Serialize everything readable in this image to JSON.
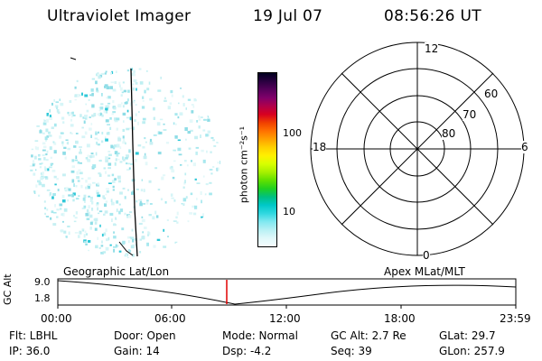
{
  "header": {
    "instrument": "Ultraviolet Imager",
    "date": "19 Jul 07",
    "time": "08:56:26 UT"
  },
  "colorbar": {
    "label": "photon cm⁻²s⁻¹",
    "ticks": [
      "100",
      "10"
    ],
    "colors": [
      "#000020",
      "#2a0040",
      "#55005a",
      "#80006a",
      "#b0004a",
      "#d80020",
      "#f04000",
      "#ff7000",
      "#ffa000",
      "#ffd000",
      "#fff000",
      "#d8ff00",
      "#a8f000",
      "#60e000",
      "#20d020",
      "#00c080",
      "#00c8c8",
      "#30d8e0",
      "#80e8f0",
      "#b8f0f4",
      "#e0f8fa",
      "#f4fcfd"
    ]
  },
  "polar": {
    "mlt_labels": {
      "top": "12",
      "left": "18",
      "right": "6",
      "bottom": "0"
    },
    "lat_labels": [
      "60",
      "70",
      "80"
    ],
    "projection_label": "Apex MLat/MLT"
  },
  "image_panel": {
    "projection_label": "Geographic Lat/Lon"
  },
  "altitude_plot": {
    "ylabel": "GC Alt",
    "yticks": [
      "9.0",
      "1.8"
    ],
    "xticks": [
      "00:00",
      "06:00",
      "12:00",
      "18:00",
      "23:59"
    ],
    "current_time_marker": "08:56:26"
  },
  "footer": {
    "flt": "Flt: LBHL",
    "ip": "IP: 36.0",
    "door": "Door: Open",
    "gain": "Gain: 14",
    "mode": "Mode: Normal",
    "dsp": "Dsp:    -4.2",
    "gcalt": "GC Alt: 2.7 Re",
    "seq": "Seq: 39",
    "glat": "GLat:  29.7",
    "glon": "GLon: 257.9"
  }
}
